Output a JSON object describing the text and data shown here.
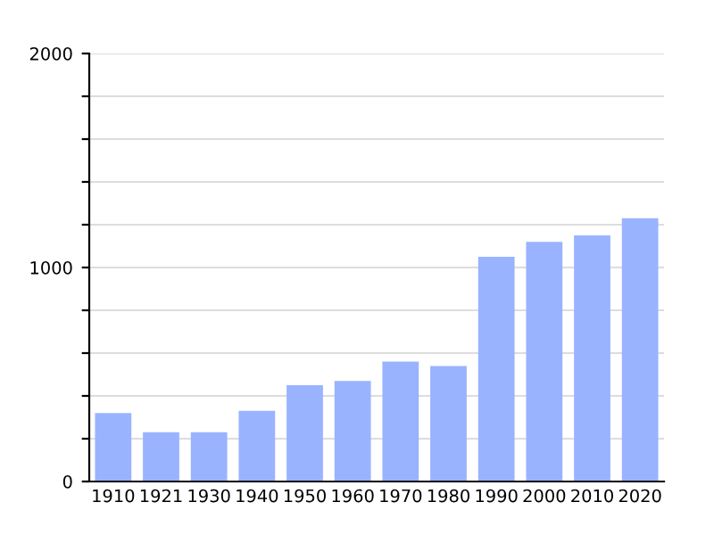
{
  "chart_data": {
    "type": "bar",
    "categories": [
      "1910",
      "1921",
      "1930",
      "1940",
      "1950",
      "1960",
      "1970",
      "1980",
      "1990",
      "2000",
      "2010",
      "2020"
    ],
    "values": [
      320,
      230,
      230,
      330,
      450,
      470,
      560,
      540,
      1050,
      1120,
      1150,
      1230
    ],
    "color": "#99b3ff",
    "ylim": [
      0,
      2000
    ],
    "yticks": [
      0,
      {
        "value": 200,
        "label": null
      },
      {
        "value": 400,
        "label": null
      },
      {
        "value": 600,
        "label": null
      },
      {
        "value": 800,
        "label": null
      },
      1000,
      {
        "value": 1200,
        "label": null
      },
      {
        "value": 1400,
        "label": null
      },
      {
        "value": 1600,
        "label": null
      },
      {
        "value": 1800,
        "label": null
      },
      2000
    ],
    "grid": "y"
  }
}
